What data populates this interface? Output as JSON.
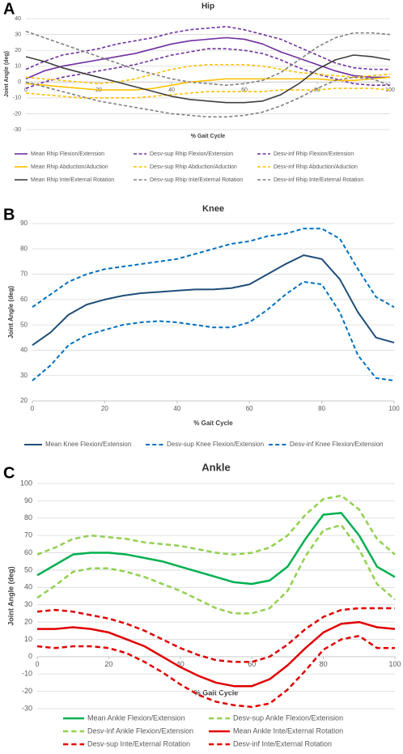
{
  "chart_data": [
    {
      "type": "line",
      "label": "A",
      "title": "Hip",
      "xlabel": "% Gait Cycle",
      "ylabel": "Joint Angle (deg)",
      "x": [
        0,
        5,
        10,
        15,
        20,
        25,
        30,
        35,
        40,
        45,
        50,
        55,
        60,
        65,
        70,
        75,
        80,
        85,
        90,
        95,
        100
      ],
      "xlim": [
        0,
        100
      ],
      "xticks": [
        0,
        20,
        40,
        60,
        80,
        100
      ],
      "ylim": [
        -30,
        40
      ],
      "yticks": [
        -30,
        -20,
        -10,
        0,
        10,
        20,
        30,
        40
      ],
      "grid": true,
      "series": [
        {
          "name": "Mean Rhip Flexion/Extension",
          "color": "#7030a0",
          "dashed": false,
          "values": [
            2,
            7,
            10,
            12,
            14,
            16,
            18,
            21,
            24,
            26,
            27,
            28,
            27,
            24,
            19,
            15,
            11,
            7,
            4,
            3,
            3
          ]
        },
        {
          "name": "Desv-sup Rhip Flexion/Extension",
          "color": "#7030a0",
          "dashed": true,
          "values": [
            8,
            13,
            17,
            19,
            21,
            24,
            26,
            28,
            31,
            33,
            34,
            35,
            33,
            30,
            27,
            22,
            17,
            12,
            9,
            8,
            8
          ]
        },
        {
          "name": "Desv-inf Rhip Flexion/Extension",
          "color": "#7030a0",
          "dashed": true,
          "values": [
            -4,
            0,
            3,
            5,
            7,
            9,
            11,
            14,
            17,
            19,
            21,
            21,
            20,
            18,
            14,
            9,
            5,
            2,
            -1,
            -2,
            -2
          ]
        },
        {
          "name": "Mean Rhip Abduction/Aduction",
          "color": "#ffc000",
          "dashed": false,
          "values": [
            -1,
            -2,
            -3,
            -4,
            -5,
            -5,
            -5,
            -4,
            -2,
            0,
            1,
            2,
            2,
            2,
            2,
            2,
            2,
            1,
            1,
            2,
            3
          ]
        },
        {
          "name": "Desv-sup Rhip Abduction/Aduction",
          "color": "#ffc000",
          "dashed": true,
          "values": [
            3,
            2,
            1,
            0,
            -1,
            0,
            2,
            5,
            8,
            10,
            11,
            11,
            11,
            10,
            8,
            6,
            5,
            4,
            3,
            4,
            5
          ]
        },
        {
          "name": "Desv-inf Rhip Abduction/Aduction",
          "color": "#ffc000",
          "dashed": true,
          "values": [
            -7,
            -8,
            -9,
            -10,
            -10,
            -10,
            -10,
            -9,
            -8,
            -7,
            -6,
            -6,
            -6,
            -6,
            -5,
            -5,
            -5,
            -4,
            -4,
            -4,
            -5
          ]
        },
        {
          "name": "Mean Rhip Inte/External Rotation",
          "color": "#404040",
          "dashed": false,
          "values": [
            16,
            13,
            9,
            6,
            3,
            0,
            -3,
            -6,
            -9,
            -11,
            -12,
            -13,
            -13,
            -12,
            -8,
            -1,
            8,
            14,
            17,
            16,
            14
          ]
        },
        {
          "name": "Desv-sup Rhip Inte/External Rotation",
          "color": "#808080",
          "dashed": true,
          "values": [
            32,
            28,
            24,
            20,
            16,
            12,
            8,
            5,
            2,
            0,
            -1,
            -2,
            -1,
            1,
            6,
            14,
            22,
            28,
            31,
            31,
            30
          ]
        },
        {
          "name": "Desv-inf Rhip Inte/External Rotation",
          "color": "#808080",
          "dashed": true,
          "values": [
            0,
            -3,
            -6,
            -9,
            -12,
            -14,
            -16,
            -18,
            -20,
            -21,
            -22,
            -22,
            -21,
            -19,
            -15,
            -10,
            -4,
            1,
            3,
            2,
            -2
          ]
        }
      ]
    },
    {
      "type": "line",
      "label": "B",
      "title": "Knee",
      "xlabel": "% Gait Cycle",
      "ylabel": "Joint Angle (deg)",
      "x": [
        0,
        5,
        10,
        15,
        20,
        25,
        30,
        35,
        40,
        45,
        50,
        55,
        60,
        65,
        70,
        75,
        80,
        85,
        90,
        95,
        100
      ],
      "xlim": [
        0,
        100
      ],
      "xticks": [
        0,
        20,
        40,
        60,
        80,
        100
      ],
      "ylim": [
        20,
        90
      ],
      "yticks": [
        20,
        30,
        40,
        50,
        60,
        70,
        80,
        90
      ],
      "grid": true,
      "series": [
        {
          "name": "Mean Knee Flexion/Extension",
          "color": "#1f4e79",
          "dashed": false,
          "values": [
            42,
            47,
            54,
            58,
            60,
            61.5,
            62.5,
            63,
            63.5,
            64,
            64,
            64.5,
            66,
            70,
            74,
            77.5,
            76,
            68,
            55,
            45,
            43
          ]
        },
        {
          "name": "Desv-sup Knee Flexion/Extension",
          "color": "#0070c0",
          "dashed": true,
          "values": [
            57,
            62,
            67,
            70,
            72,
            73,
            74,
            75,
            76,
            78,
            80,
            82,
            83,
            85,
            86,
            88,
            88,
            84,
            72,
            61,
            57
          ]
        },
        {
          "name": "Desv-inf Knee Flexion/Extension",
          "color": "#0070c0",
          "dashed": true,
          "values": [
            28,
            34,
            42,
            46,
            48,
            50,
            51,
            51.5,
            51,
            50,
            49,
            49,
            51,
            56,
            62,
            67,
            66,
            55,
            38,
            29,
            28
          ]
        }
      ]
    },
    {
      "type": "line",
      "label": "C",
      "title": "Ankle",
      "xlabel": "% Gait Cycle",
      "ylabel": "Joint Angle (deg)",
      "x": [
        0,
        5,
        10,
        15,
        20,
        25,
        30,
        35,
        40,
        45,
        50,
        55,
        60,
        65,
        70,
        75,
        80,
        85,
        90,
        95,
        100
      ],
      "xlim": [
        0,
        100
      ],
      "xticks": [
        0,
        20,
        40,
        60,
        80,
        100
      ],
      "ylim": [
        -30,
        100
      ],
      "yticks": [
        -30,
        -20,
        -10,
        0,
        10,
        20,
        30,
        40,
        50,
        60,
        70,
        80,
        90,
        100
      ],
      "grid": true,
      "series": [
        {
          "name": "Mean Ankle Flexion/Extension",
          "color": "#00b050",
          "dashed": false,
          "values": [
            47,
            53,
            59,
            60,
            60,
            59,
            57,
            55,
            52,
            49,
            46,
            43,
            42,
            44,
            52,
            68,
            82,
            83,
            70,
            52,
            46
          ]
        },
        {
          "name": "Desv-sup Ankle Flexion/Extension",
          "color": "#92d050",
          "dashed": true,
          "values": [
            59,
            63,
            68,
            70,
            69,
            68,
            66,
            65,
            64,
            62,
            60,
            59,
            60,
            63,
            70,
            82,
            91,
            93,
            85,
            68,
            59
          ]
        },
        {
          "name": "Desv-inf Ankle Flexion/Extension",
          "color": "#92d050",
          "dashed": true,
          "values": [
            34,
            41,
            49,
            51,
            51,
            49,
            46,
            42,
            38,
            33,
            28,
            25,
            25,
            28,
            38,
            58,
            73,
            76,
            62,
            42,
            33
          ]
        },
        {
          "name": "Mean Ankle Inte/External Rotation",
          "color": "#e00000",
          "dashed": false,
          "values": [
            16,
            16,
            17,
            16,
            14,
            10,
            6,
            0,
            -6,
            -11,
            -15,
            -17,
            -17,
            -13,
            -5,
            5,
            14,
            19,
            20,
            17,
            16
          ]
        },
        {
          "name": "Desv-sup Inte/External Rotation",
          "color": "#e00000",
          "dashed": true,
          "values": [
            26,
            27,
            26,
            24,
            22,
            19,
            15,
            10,
            5,
            1,
            -2,
            -3,
            -3,
            0,
            7,
            16,
            23,
            27,
            28,
            28,
            28
          ]
        },
        {
          "name": "Desv-inf Inte/External Rotation",
          "color": "#e00000",
          "dashed": true,
          "values": [
            6,
            5,
            6,
            6,
            5,
            2,
            -3,
            -9,
            -16,
            -22,
            -26,
            -28,
            -29,
            -27,
            -19,
            -8,
            4,
            10,
            12,
            5,
            5
          ]
        }
      ]
    }
  ]
}
